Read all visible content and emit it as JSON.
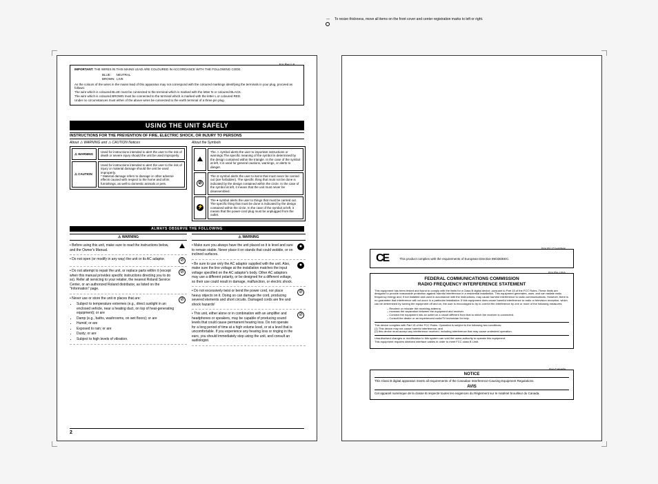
{
  "reg_note": "To resize thickness, move all items on the front cover\nand center registration marks to left or right.",
  "uk": {
    "label": "For the U.K.",
    "important": "IMPORTANT:",
    "imp_text": " THE WIRES IN THIS MAINS LEAD ARE COLOURED IN ACCORDANCE WITH THE FOLLOWING CODE.",
    "codes": "BLUE:      NEUTRAL\nBROWN:  LIVE",
    "para": "As the colours of the wires in the mains lead of this apparatus may not correspond with the coloured markings identifying the terminals in your plug, proceed as follows:\nThe wire which is coloured BLUE must be connected to the terminal which is marked with the letter N or coloured BLACK.\nThe wire which is coloured BROWN must be connected to the terminal which is marked with the letter L or coloured RED.\nUnder no circumstances must either of the above wires be connected to the earth terminal of a three pin plug."
  },
  "title": "USING THE UNIT SAFELY",
  "instructions_line": "INSTRUCTIONS FOR THE PREVENTION OF FIRE, ELECTRIC SHOCK, OR INJURY TO PERSONS",
  "about_l": "About ⚠ WARNING and ⚠ CAUTION Notices",
  "about_r": "About the Symbols",
  "warn_label": "⚠ WARNING",
  "caut_label": "⚠ CAUTION",
  "def": {
    "warn": "Used for instructions intended to alert the user to the risk of death or severe injury should the unit be used improperly.",
    "caut": "Used for instructions intended to alert the user to the risk of injury or material damage should the unit be used improperly.\n* Material damage refers to damage or other adverse effects caused with respect to the home and all its furnishings, as well to domestic animals or pets.",
    "sym1": "The ⚠ symbol alerts the user to important instructions or warnings.The specific meaning of the symbol is determined by the design contained within the triangle. In the case of the symbol at left, it is used for general cautions, warnings, or alerts to danger.",
    "sym2": "The ⊘ symbol alerts the user to items that must never be carried out (are forbidden). The specific thing that must not be done is indicated by the design contained within the circle. In the case of the symbol at left, it means that the unit must never be disassembled.",
    "sym3": "The ● symbol alerts the user to things that must be carried out. The specific thing that must be done is indicated by the design contained within the circle. In the case of the symbol at left, it means that the power-cord plug must be unplugged from the outlet."
  },
  "always": "ALWAYS OBSERVE THE FOLLOWING",
  "col_l": [
    {
      "text": "Before using this unit, make sure to read the instructions below, and the Owner's Manual.",
      "icon": "▲"
    },
    {
      "text": "Do not open (or modify in any way) the unit or its AC adaptor.",
      "icon": "⊘"
    },
    {
      "text": "Do not attempt to repair the unit, or replace parts within it (except when this manual provides specific instructions directing you to do so). Refer all servicing to your retailer, the nearest Roland Service Center, or an authorized Roland distributor, as listed on the \"Information\" page.",
      "icon": "⊘"
    },
    {
      "text": "Never use or store the unit in places that are:",
      "icon": "⊘",
      "sub": [
        "Subject to temperature extremes (e.g., direct sunlight in an enclosed vehicle, near a heating duct, on top of heat-generating equipment); or are",
        "Damp (e.g., baths, washrooms, on wet floors); or are",
        "Humid; or are",
        "Exposed to rain; or are",
        "Dusty; or are",
        "Subject to high levels of vibration."
      ]
    }
  ],
  "col_r": [
    {
      "text": "Make sure you always have the unit placed so it is level and sure to remain stable. Never place it on stands that could wobble, or on inclined surfaces.",
      "icon": "●"
    },
    {
      "text": "Be sure to use only the AC adaptor supplied with the unit. Also, make sure the line voltage at the installation matches the input voltage specified on the AC adaptor's body. Other AC adaptors may use a different polarity, or be designed for a different voltage, so their use could result in damage, malfunction, or electric shock.",
      "icon": "●"
    },
    {
      "text": "Do not excessively twist or bend the power cord, nor place heavy objects on it. Doing so can damage the cord, producing severed elements and short circuits. Damaged cords are fire and shock hazards!",
      "icon": "⊘"
    },
    {
      "text": "This unit, either alone or in combination with an amplifier and headphones or speakers, may be capable of producing sound levels that could cause permanent hearing loss. Do not operate for a long period of time at a high volume level, or at a level that is uncomfortable. If you experience any hearing loss or ringing in the ears, you should immediately stop using the unit, and consult an audiologist.",
      "icon": "⊘"
    }
  ],
  "page_num": "2",
  "eu": {
    "label": "For EU Countries",
    "ce": "CE",
    "text": "This product complies with the requirements of European Directive 89/336/EEC."
  },
  "usa": {
    "label": "For the USA",
    "title": "FEDERAL COMMUNICATIONS COMMISSION\nRADIO FREQUENCY INTERFERENCE STATEMENT",
    "p1": "This equipment has been tested and found to comply with the limits for a Class B digital device, pursuant to Part 15 of the FCC Rules. These limits are designed to provide reasonable protection against harmful interference in a residential installation. This equipment generates, uses, and can radiate radio frequency energy and, if not installed and used in accordance with the instructions, may cause harmful interference to radio communications. However, there is no guarantee that interference will not occur in a particular installation. If this equipment does cause harmful interference to radio or television reception, which can be determined by turning the equipment off and on, the user is encouraged to try to correct the interference by one or more of the following measures:",
    "bullets": [
      "Reorient or relocate the receiving antenna.",
      "Increase the separation between the equipment and receiver.",
      "Connect the equipment into an outlet on a circuit different from that to which the receiver is connected.",
      "Consult the dealer or an experienced radio/TV technician for help."
    ],
    "p2": "This device complies with Part 15 of the FCC Rules. Operation is subject to the following two conditions:\n(1) This device may not cause harmful interference, and\n(2) this device must accept any interference received, including interference that may cause undesired operation.",
    "p3": "Unauthorised changes or modification to this system can void the users authority to operate this equipment.\nThis equipment requires shielded interface cables in order to meet FCC class B Limit."
  },
  "canada": {
    "label": "For Canada",
    "notice_h": "NOTICE",
    "notice": "This Class B digital apparatus meets all requirements of the Canadian Interference-Causing Equipment Regulations.",
    "avis_h": "AVIS",
    "avis": "Cet appareil numérique de la classe B respecte toutes les exigences du Règlement sur le matériel brouilleur du Canada."
  }
}
